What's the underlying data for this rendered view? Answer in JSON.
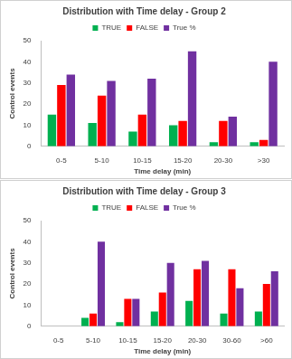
{
  "chart_data": [
    {
      "type": "bar",
      "title": "Distribution with Time delay - Group 2",
      "x_label": "Time delay (min)",
      "y_label": "Control events",
      "categories": [
        "0-5",
        "5-10",
        "10-15",
        "15-20",
        "20-30",
        ">30"
      ],
      "series": [
        {
          "name": "TRUE",
          "color": "#00b050",
          "values": [
            15,
            11,
            7,
            10,
            2,
            2
          ]
        },
        {
          "name": "FALSE",
          "color": "#ff0000",
          "values": [
            29,
            24,
            15,
            12,
            12,
            3
          ]
        },
        {
          "name": "True %",
          "color": "#7030a0",
          "values": [
            34,
            31,
            32,
            45,
            14,
            40
          ]
        }
      ],
      "ylim": [
        0,
        50
      ],
      "yticks": [
        0,
        10,
        20,
        30,
        40,
        50
      ],
      "grid": false,
      "legend": "top"
    },
    {
      "type": "bar",
      "title": "Distribution with Time delay - Group 3",
      "x_label": "Time delay (min)",
      "y_label": "Control events",
      "categories": [
        "0-5",
        "5-10",
        "10-15",
        "15-20",
        "20-30",
        "30-60",
        ">60"
      ],
      "series": [
        {
          "name": "TRUE",
          "color": "#00b050",
          "values": [
            0,
            4,
            2,
            7,
            12,
            6,
            7
          ]
        },
        {
          "name": "FALSE",
          "color": "#ff0000",
          "values": [
            0,
            6,
            13,
            16,
            27,
            27,
            20
          ]
        },
        {
          "name": "True %",
          "color": "#7030a0",
          "values": [
            0,
            40,
            13,
            30,
            31,
            18,
            26
          ]
        }
      ],
      "ylim": [
        0,
        50
      ],
      "yticks": [
        0,
        10,
        20,
        30,
        40,
        50
      ],
      "grid": false,
      "legend": "top"
    }
  ]
}
